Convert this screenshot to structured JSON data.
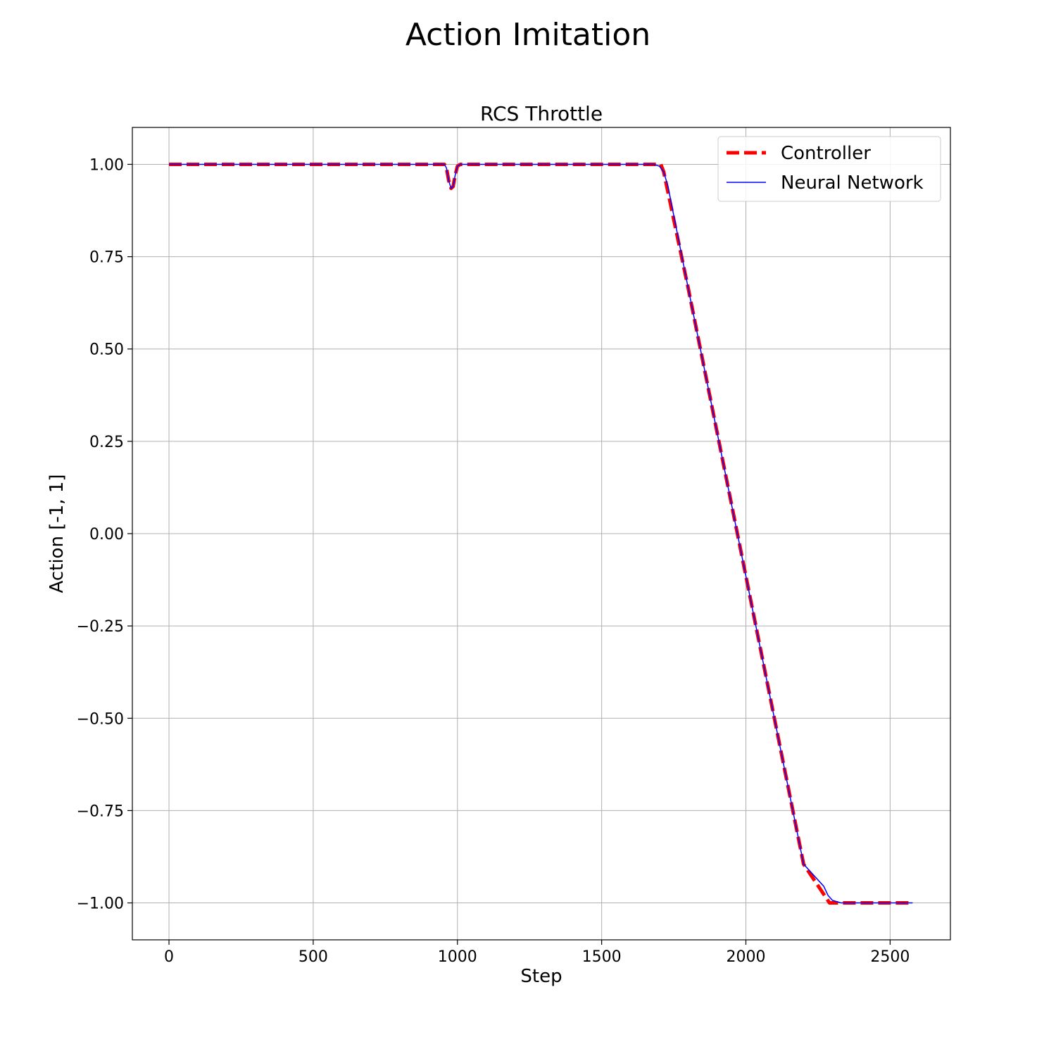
{
  "figure": {
    "suptitle": "Action Imitation"
  },
  "chart_data": {
    "type": "line",
    "title": "RCS Throttle",
    "xlabel": "Step",
    "ylabel": "Action [-1, 1]",
    "xlim": [
      -127,
      2709
    ],
    "ylim": [
      -1.1,
      1.1
    ],
    "xticks": [
      0,
      500,
      1000,
      1500,
      2000,
      2500
    ],
    "xtick_labels": [
      "0",
      "500",
      "1000",
      "1500",
      "2000",
      "2500"
    ],
    "yticks": [
      1.0,
      0.75,
      0.5,
      0.25,
      0.0,
      -0.25,
      -0.5,
      -0.75,
      -1.0
    ],
    "ytick_labels": [
      "1.00",
      "0.75",
      "0.50",
      "0.25",
      "0.00",
      "−0.25",
      "−0.50",
      "−0.75",
      "−1.00"
    ],
    "grid": true,
    "legend_position": "top-right",
    "series": [
      {
        "name": "Controller",
        "color": "#ff0000",
        "style": "dashed",
        "x": [
          0,
          955,
          962,
          970,
          978,
          985,
          992,
          1000,
          1010,
          1705,
          1715,
          1800,
          1900,
          2000,
          2100,
          2200,
          2290,
          2578
        ],
        "y": [
          1.0,
          1.0,
          0.99,
          0.955,
          0.935,
          0.94,
          0.97,
          0.995,
          1.0,
          1.0,
          0.98,
          0.665,
          0.275,
          -0.115,
          -0.505,
          -0.895,
          -1.0,
          -1.0
        ]
      },
      {
        "name": "Neural Network",
        "color": "#0000ff",
        "style": "solid",
        "x": [
          0,
          955,
          962,
          970,
          978,
          985,
          992,
          1000,
          1010,
          1680,
          1700,
          1715,
          1730,
          1800,
          1900,
          2000,
          2100,
          2200,
          2270,
          2285,
          2300,
          2330,
          2578
        ],
        "y": [
          1.0,
          1.0,
          0.99,
          0.955,
          0.935,
          0.94,
          0.97,
          0.995,
          1.0,
          1.0,
          0.995,
          0.98,
          0.94,
          0.665,
          0.275,
          -0.115,
          -0.505,
          -0.895,
          -0.955,
          -0.98,
          -0.993,
          -1.0,
          -1.0
        ]
      }
    ]
  }
}
